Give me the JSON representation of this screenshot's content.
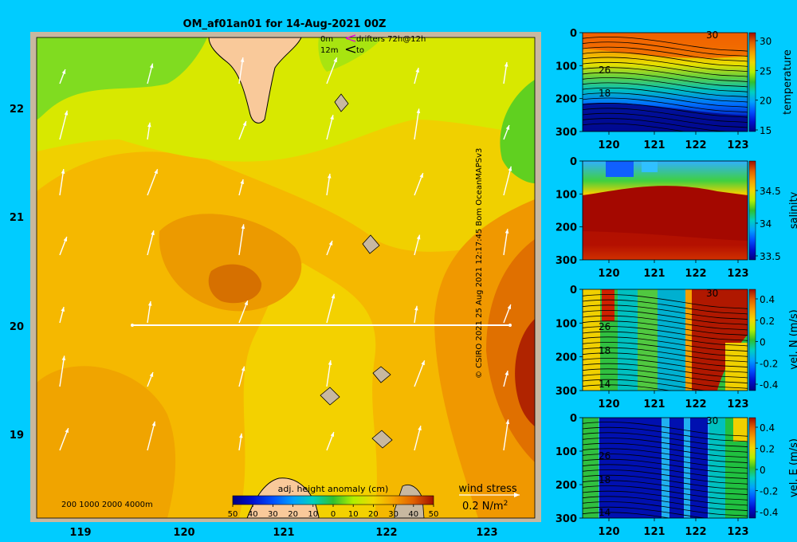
{
  "title": "OM_af01an01 for 14-Aug-2021 00Z",
  "credit": "© CSIRO 2021   25 Aug 2021 12:17:45 Bom OceanMAPSv3",
  "main_map": {
    "x_ticks": [
      "119",
      "120",
      "121",
      "122",
      "123"
    ],
    "y_ticks": [
      "22",
      "21",
      "20",
      "19"
    ],
    "legend_depth_line1": "0m",
    "legend_depth_line2": "12m",
    "legend_drifters": "drifters 72h@12h",
    "legend_to": "to",
    "bathymetry_labels": "200  1000  2000  4000m",
    "colorbar_title": "adj. height anomaly (cm)",
    "colorbar_ticks": [
      "-50",
      "-40",
      "-30",
      "-20",
      "-10",
      "0",
      "10",
      "20",
      "30",
      "40",
      "50"
    ],
    "wind_stress_label": "wind stress",
    "wind_stress_scale": "0.2 N/m",
    "wind_stress_sup": "2"
  },
  "colors": {
    "background": "#00ccff",
    "land": "#f9c99a",
    "frame": "#c8b8a0"
  },
  "chart_data": [
    {
      "type": "heatmap",
      "name": "adj. height anomaly map",
      "x_range": [
        118.5,
        123.5
      ],
      "y_range": [
        18.25,
        22.7
      ],
      "value_range": [
        -50,
        50
      ],
      "section_line": {
        "lon": [
          119.5,
          123.2
        ],
        "lat": [
          20,
          20
        ]
      },
      "anomaly_centres": [
        {
          "lon": 119.2,
          "lat": 22.4,
          "value": 5
        },
        {
          "lon": 123.2,
          "lat": 21.9,
          "value": 2
        },
        {
          "lon": 121.6,
          "lat": 22.3,
          "value": 12
        },
        {
          "lon": 120.6,
          "lat": 20.4,
          "value": 40
        },
        {
          "lon": 123.4,
          "lat": 19.7,
          "value": 46
        },
        {
          "lon": 122.0,
          "lat": 19.7,
          "value": 22
        },
        {
          "lon": 119.2,
          "lat": 19.2,
          "value": 31
        }
      ]
    },
    {
      "type": "heatmap",
      "name": "temperature section",
      "y_label": "temperature",
      "x_ticks": [
        "120",
        "121",
        "122",
        "123"
      ],
      "y_ticks": [
        "0",
        "100",
        "200",
        "300"
      ],
      "cbar_ticks": [
        "30",
        "25",
        "20",
        "15"
      ],
      "contour_labels": [
        "30",
        "26",
        "18"
      ]
    },
    {
      "type": "heatmap",
      "name": "salinity section",
      "y_label": "salinity",
      "x_ticks": [
        "120",
        "121",
        "122",
        "123"
      ],
      "y_ticks": [
        "0",
        "100",
        "200",
        "300"
      ],
      "cbar_ticks": [
        "34.5",
        "34",
        "33.5"
      ],
      "contour_labels": []
    },
    {
      "type": "heatmap",
      "name": "vel. N section",
      "y_label": "vel. N (m/s)",
      "x_ticks": [
        "120",
        "121",
        "122",
        "123"
      ],
      "y_ticks": [
        "0",
        "100",
        "200",
        "300"
      ],
      "cbar_ticks": [
        "0.4",
        "0.2",
        "0",
        "-0.2",
        "-0.4"
      ],
      "contour_labels": [
        "30",
        "26",
        "18",
        "14"
      ]
    },
    {
      "type": "heatmap",
      "name": "vel. E section",
      "y_label": "vel. E (m/s)",
      "x_ticks": [
        "120",
        "121",
        "122",
        "123"
      ],
      "y_ticks": [
        "0",
        "100",
        "200",
        "300"
      ],
      "cbar_ticks": [
        "0.4",
        "0.2",
        "0",
        "-0.2",
        "-0.4"
      ],
      "contour_labels": [
        "30",
        "26",
        "18",
        "14"
      ]
    }
  ]
}
